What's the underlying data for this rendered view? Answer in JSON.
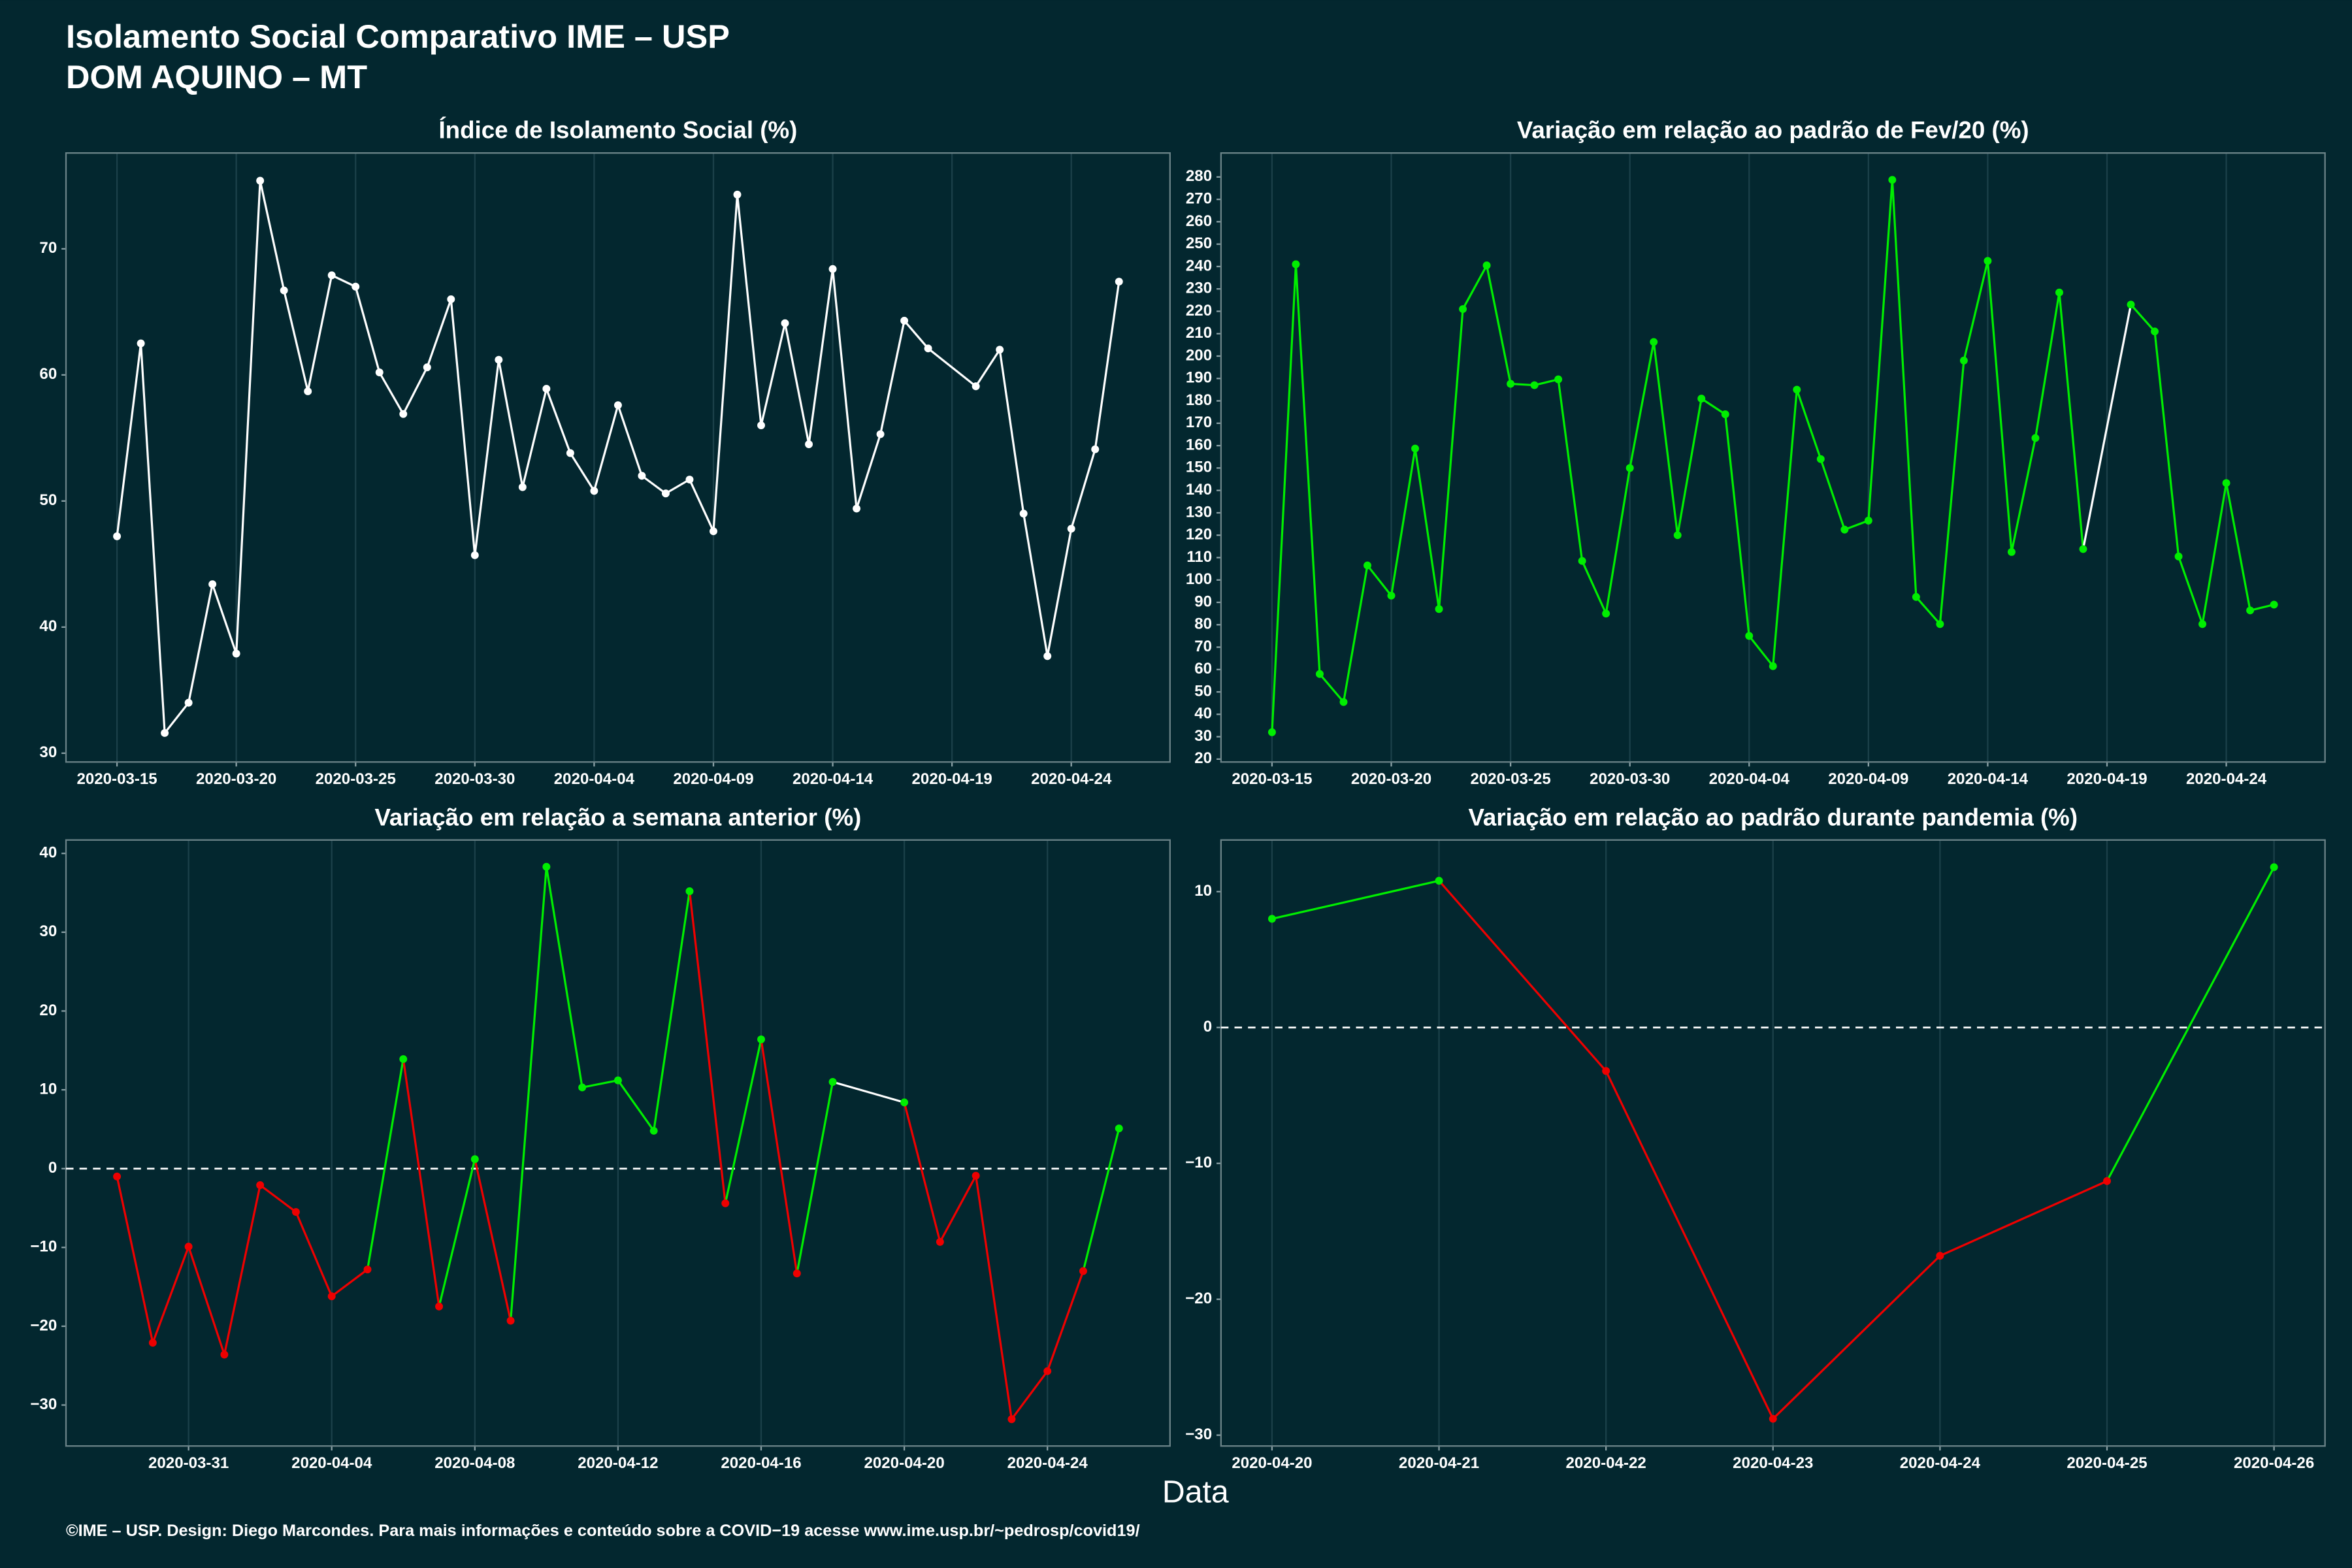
{
  "page": {
    "title": "Isolamento Social Comparativo IME – USP",
    "subtitle": "DOM AQUINO – MT",
    "x_label": "Data",
    "footer": "©IME – USP. Design: Diego Marcondes. Para mais informações e conteúdo sobre a COVID−19 acesse www.ime.usp.br/~pedrosp/covid19/"
  },
  "chart_data": [
    {
      "type": "line",
      "title": "Índice de Isolamento Social (%)",
      "x": [
        "2020-03-15",
        "2020-03-16",
        "2020-03-17",
        "2020-03-18",
        "2020-03-19",
        "2020-03-20",
        "2020-03-21",
        "2020-03-22",
        "2020-03-23",
        "2020-03-24",
        "2020-03-25",
        "2020-03-26",
        "2020-03-27",
        "2020-03-28",
        "2020-03-29",
        "2020-03-30",
        "2020-03-31",
        "2020-04-01",
        "2020-04-02",
        "2020-04-03",
        "2020-04-04",
        "2020-04-05",
        "2020-04-06",
        "2020-04-07",
        "2020-04-08",
        "2020-04-09",
        "2020-04-10",
        "2020-04-11",
        "2020-04-12",
        "2020-04-13",
        "2020-04-14",
        "2020-04-15",
        "2020-04-16",
        "2020-04-17",
        "2020-04-18",
        "2020-04-20",
        "2020-04-21",
        "2020-04-22",
        "2020-04-23",
        "2020-04-24",
        "2020-04-25",
        "2020-04-26"
      ],
      "series": [
        {
          "color": "#ffffff",
          "values": [
            47.2,
            62.5,
            31.6,
            34,
            43.4,
            37.9,
            75.4,
            66.7,
            58.7,
            67.9,
            67,
            60.2,
            56.9,
            60.6,
            66,
            45.7,
            61.2,
            51.1,
            58.9,
            53.8,
            50.8,
            57.6,
            52,
            50.6,
            51.7,
            47.6,
            74.3,
            56,
            64.1,
            54.5,
            68.4,
            49.4,
            55.3,
            64.3,
            62.1,
            59.1,
            62,
            49,
            37.7,
            47.8,
            54.1,
            67.4
          ]
        }
      ],
      "xlim": [
        "2020-03-15",
        "2020-04-26"
      ],
      "xticks": [
        "2020-03-15",
        "2020-03-20",
        "2020-03-25",
        "2020-03-30",
        "2020-04-04",
        "2020-04-09",
        "2020-04-14",
        "2020-04-19",
        "2020-04-24"
      ],
      "ylim": [
        29.3,
        77.6
      ],
      "yticks": [
        30,
        40,
        50,
        60,
        70
      ],
      "grid": "x"
    },
    {
      "type": "line",
      "title": "Variação em relação ao padrão de Fev/20 (%)",
      "x": [
        "2020-03-15",
        "2020-03-16",
        "2020-03-17",
        "2020-03-18",
        "2020-03-19",
        "2020-03-20",
        "2020-03-21",
        "2020-03-22",
        "2020-03-23",
        "2020-03-24",
        "2020-03-25",
        "2020-03-26",
        "2020-03-27",
        "2020-03-28",
        "2020-03-29",
        "2020-03-30",
        "2020-03-31",
        "2020-04-01",
        "2020-04-02",
        "2020-04-03",
        "2020-04-04",
        "2020-04-05",
        "2020-04-06",
        "2020-04-07",
        "2020-04-08",
        "2020-04-09",
        "2020-04-10",
        "2020-04-11",
        "2020-04-12",
        "2020-04-13",
        "2020-04-14",
        "2020-04-15",
        "2020-04-16",
        "2020-04-17",
        "2020-04-18",
        "2020-04-20",
        "2020-04-21",
        "2020-04-22",
        "2020-04-23",
        "2020-04-24",
        "2020-04-25",
        "2020-04-26"
      ],
      "series": [
        {
          "color": "#ffffff",
          "positive_color": "#00ee00",
          "negative_color": "#ee0000",
          "values": [
            32,
            241,
            58,
            45.5,
            106.5,
            93,
            158.7,
            87,
            221,
            240.5,
            187.6,
            187,
            189.6,
            108.5,
            85,
            150,
            206.3,
            120,
            181,
            174,
            75,
            61.5,
            185,
            154,
            122.5,
            126.5,
            278.7,
            92.4,
            80.3,
            198,
            242.5,
            112.5,
            163.4,
            228.4,
            113.8,
            223,
            211,
            110.5,
            80.3,
            143.3,
            86.4,
            89
          ]
        }
      ],
      "xlim": [
        "2020-03-15",
        "2020-04-26"
      ],
      "xticks": [
        "2020-03-15",
        "2020-03-20",
        "2020-03-25",
        "2020-03-30",
        "2020-04-04",
        "2020-04-09",
        "2020-04-14",
        "2020-04-19",
        "2020-04-24"
      ],
      "ylim": [
        18.7,
        290.7
      ],
      "yticks": [
        20,
        30,
        40,
        50,
        60,
        70,
        80,
        90,
        100,
        110,
        120,
        130,
        140,
        150,
        160,
        170,
        180,
        190,
        200,
        210,
        220,
        230,
        240,
        250,
        260,
        270,
        280
      ],
      "grid": "x"
    },
    {
      "type": "line",
      "title": "Variação em relação a semana anterior (%)",
      "x": [
        "2020-03-29",
        "2020-03-30",
        "2020-03-31",
        "2020-04-01",
        "2020-04-02",
        "2020-04-03",
        "2020-04-04",
        "2020-04-05",
        "2020-04-06",
        "2020-04-07",
        "2020-04-08",
        "2020-04-09",
        "2020-04-10",
        "2020-04-11",
        "2020-04-12",
        "2020-04-13",
        "2020-04-14",
        "2020-04-15",
        "2020-04-16",
        "2020-04-17",
        "2020-04-18",
        "2020-04-20",
        "2020-04-21",
        "2020-04-22",
        "2020-04-23",
        "2020-04-24",
        "2020-04-25",
        "2020-04-26"
      ],
      "series": [
        {
          "color": "#ffffff",
          "positive_color": "#00ee00",
          "negative_color": "#ee0000",
          "values": [
            -1,
            -22.1,
            -9.9,
            -23.6,
            -2.1,
            -5.5,
            -16.2,
            -12.8,
            13.9,
            -17.5,
            1.2,
            -19.3,
            38.3,
            10.3,
            11.2,
            4.8,
            35.2,
            -4.4,
            16.4,
            -13.3,
            11,
            8.4,
            -9.3,
            -0.9,
            -31.8,
            -25.7,
            -13,
            5.1
          ]
        }
      ],
      "xlim": [
        "2020-03-29",
        "2020-04-26"
      ],
      "xticks": [
        "2020-03-31",
        "2020-04-04",
        "2020-04-08",
        "2020-04-12",
        "2020-04-16",
        "2020-04-20",
        "2020-04-24"
      ],
      "ylim": [
        -35.2,
        41.7
      ],
      "yticks": [
        {
          "value": -30,
          "label": "−30"
        },
        {
          "value": -20,
          "label": "−20"
        },
        {
          "value": -10,
          "label": "−10"
        },
        0,
        10,
        20,
        30,
        40
      ],
      "grid": "x",
      "hline": 0
    },
    {
      "type": "line",
      "title": "Variação em relação ao padrão durante pandemia (%)",
      "x": [
        "2020-04-20",
        "2020-04-21",
        "2020-04-22",
        "2020-04-23",
        "2020-04-24",
        "2020-04-25",
        "2020-04-26"
      ],
      "series": [
        {
          "color": "#ffffff",
          "positive_color": "#00ee00",
          "negative_color": "#ee0000",
          "values": [
            8,
            10.8,
            -3.2,
            -28.8,
            -16.8,
            -11.3,
            11.8
          ]
        }
      ],
      "xlim": [
        "2020-04-20",
        "2020-04-26"
      ],
      "xticks": [
        "2020-04-20",
        "2020-04-21",
        "2020-04-22",
        "2020-04-23",
        "2020-04-24",
        "2020-04-25",
        "2020-04-26"
      ],
      "ylim": [
        -30.8,
        13.8
      ],
      "yticks": [
        {
          "value": -30,
          "label": "−30"
        },
        {
          "value": -20,
          "label": "−20"
        },
        {
          "value": -10,
          "label": "−10"
        },
        0,
        10
      ],
      "grid": "x",
      "hline": 0
    }
  ]
}
